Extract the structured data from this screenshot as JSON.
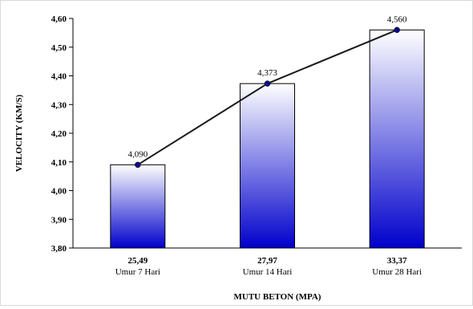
{
  "chart_data": {
    "type": "bar",
    "categories": [
      "25,49",
      "27,97",
      "33,37"
    ],
    "category_sublabels": [
      "Umur 7 Hari",
      "Umur 14 Hari",
      "Umur 28 Hari"
    ],
    "values": [
      4.09,
      4.373,
      4.56
    ],
    "data_labels": [
      "4,090",
      "4,373",
      "4,560"
    ],
    "line_overlay": true,
    "title": "",
    "xlabel": "MUTU BETON (MPA)",
    "ylabel": "VELOCITY (KM/S)",
    "ylim": [
      3.8,
      4.6
    ],
    "yticks": [
      "3,80",
      "3,90",
      "4,00",
      "4,10",
      "4,20",
      "4,30",
      "4,40",
      "4,50",
      "4,60"
    ],
    "grid": false,
    "legend": "none",
    "colors": {
      "bar_top": "#ffffff",
      "bar_bottom": "#0000cc",
      "bar_border": "#000000",
      "line": "#1a1a1a",
      "marker": "#0b0b8c"
    }
  }
}
